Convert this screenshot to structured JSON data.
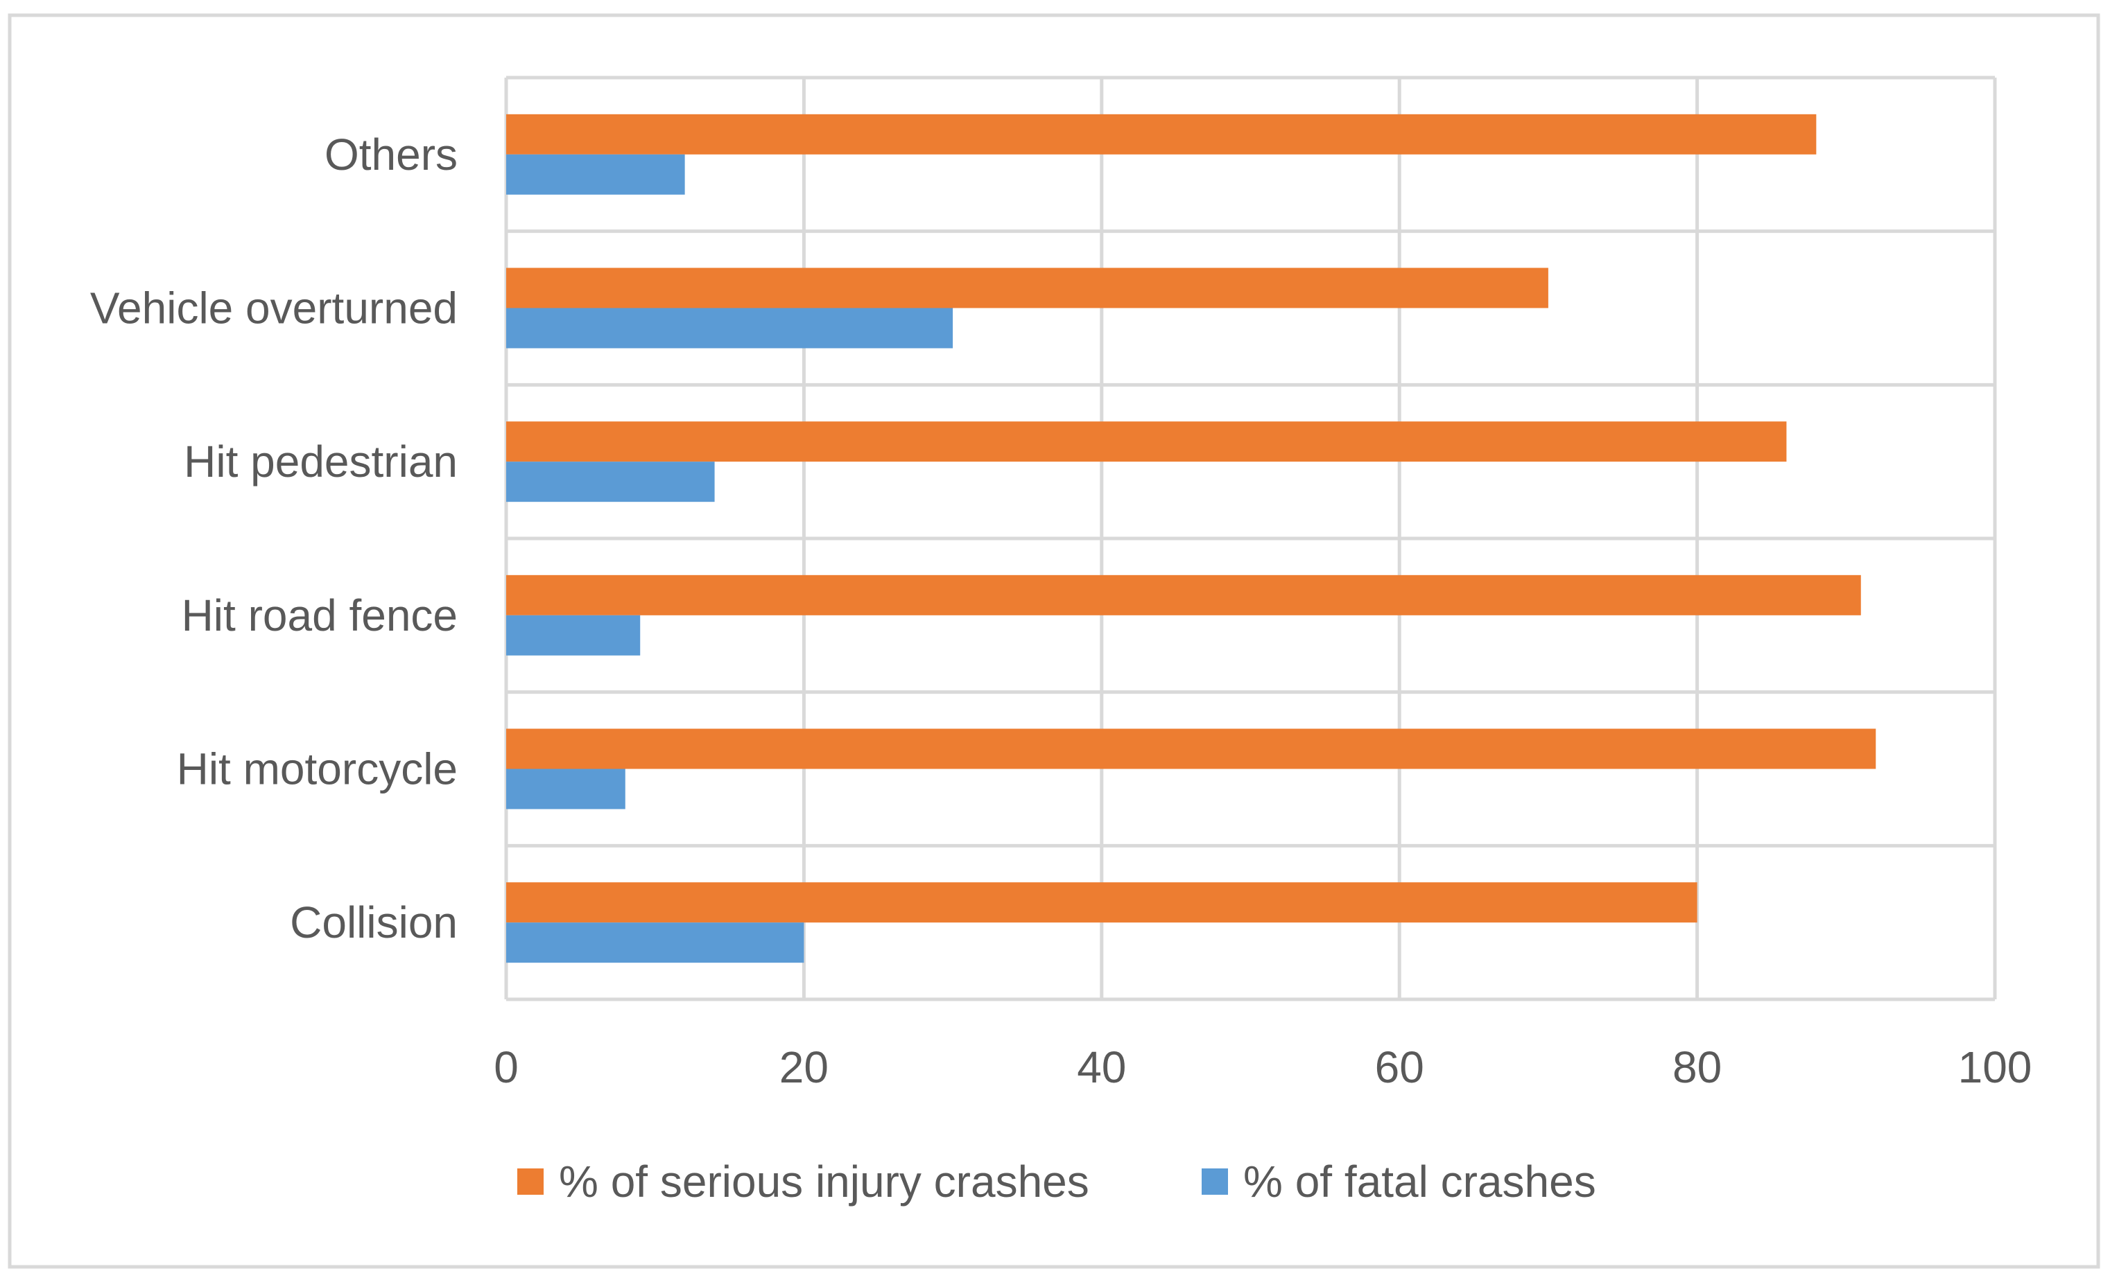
{
  "chart_data": {
    "type": "bar",
    "orientation": "horizontal",
    "title": "",
    "xlabel": "",
    "ylabel": "",
    "xlim": [
      0,
      100
    ],
    "xticks": [
      0,
      20,
      40,
      60,
      80,
      100
    ],
    "tick_labels": [
      "0",
      "20",
      "40",
      "60",
      "80",
      "100"
    ],
    "grid": true,
    "legend_position": "bottom",
    "categories": [
      "Others",
      "Vehicle overturned",
      "Hit pedestrian",
      "Hit road fence",
      "Hit motorcycle",
      "Collision"
    ],
    "series": [
      {
        "name": "% of serious injury crashes",
        "color": "#ed7d31",
        "values": [
          88,
          70,
          86,
          91,
          92,
          80
        ]
      },
      {
        "name": "% of fatal crashes",
        "color": "#5b9bd5",
        "values": [
          12,
          30,
          14,
          9,
          8,
          20
        ]
      }
    ]
  },
  "colors": {
    "grid": "#d9d9d9",
    "frame": "#d9d9d9",
    "text": "#595959",
    "background": "#ffffff"
  }
}
